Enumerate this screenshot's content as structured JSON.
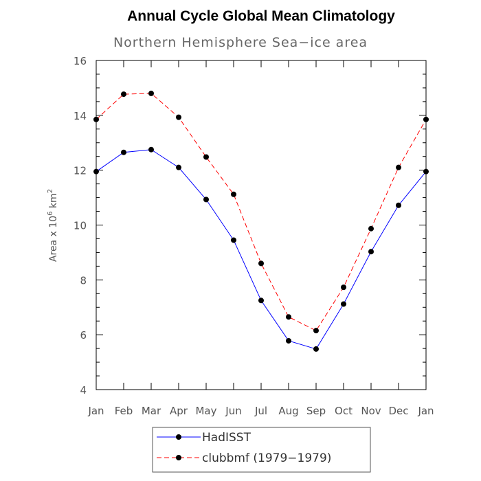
{
  "chart_data": {
    "type": "line",
    "title": "Annual Cycle Global Mean Climatology",
    "subtitle": "Northern Hemisphere Sea−ice area",
    "ylabel": "Area x 10",
    "ylabel_exp": "6",
    "ylabel_unit": "km",
    "ylabel_unit_exp": "2",
    "xlabel": "",
    "categories": [
      "Jan",
      "Feb",
      "Mar",
      "Apr",
      "May",
      "Jun",
      "Jul",
      "Aug",
      "Sep",
      "Oct",
      "Nov",
      "Dec",
      "Jan"
    ],
    "ylim": [
      4,
      16
    ],
    "yticks": [
      4,
      6,
      8,
      10,
      12,
      14,
      16
    ],
    "series": [
      {
        "name": "HadISST",
        "color": "#0000ff",
        "dash": "solid",
        "values": [
          11.95,
          12.65,
          12.75,
          12.1,
          10.93,
          9.45,
          7.25,
          5.78,
          5.48,
          7.12,
          9.03,
          10.72,
          11.95
        ]
      },
      {
        "name": "clubbmf (1979−1979)",
        "color": "#ff0000",
        "dash": "dashed",
        "values": [
          13.85,
          14.77,
          14.8,
          13.93,
          12.48,
          11.12,
          8.6,
          6.65,
          6.15,
          7.73,
          9.87,
          12.1,
          13.85
        ]
      }
    ],
    "legend_position": "bottom"
  }
}
